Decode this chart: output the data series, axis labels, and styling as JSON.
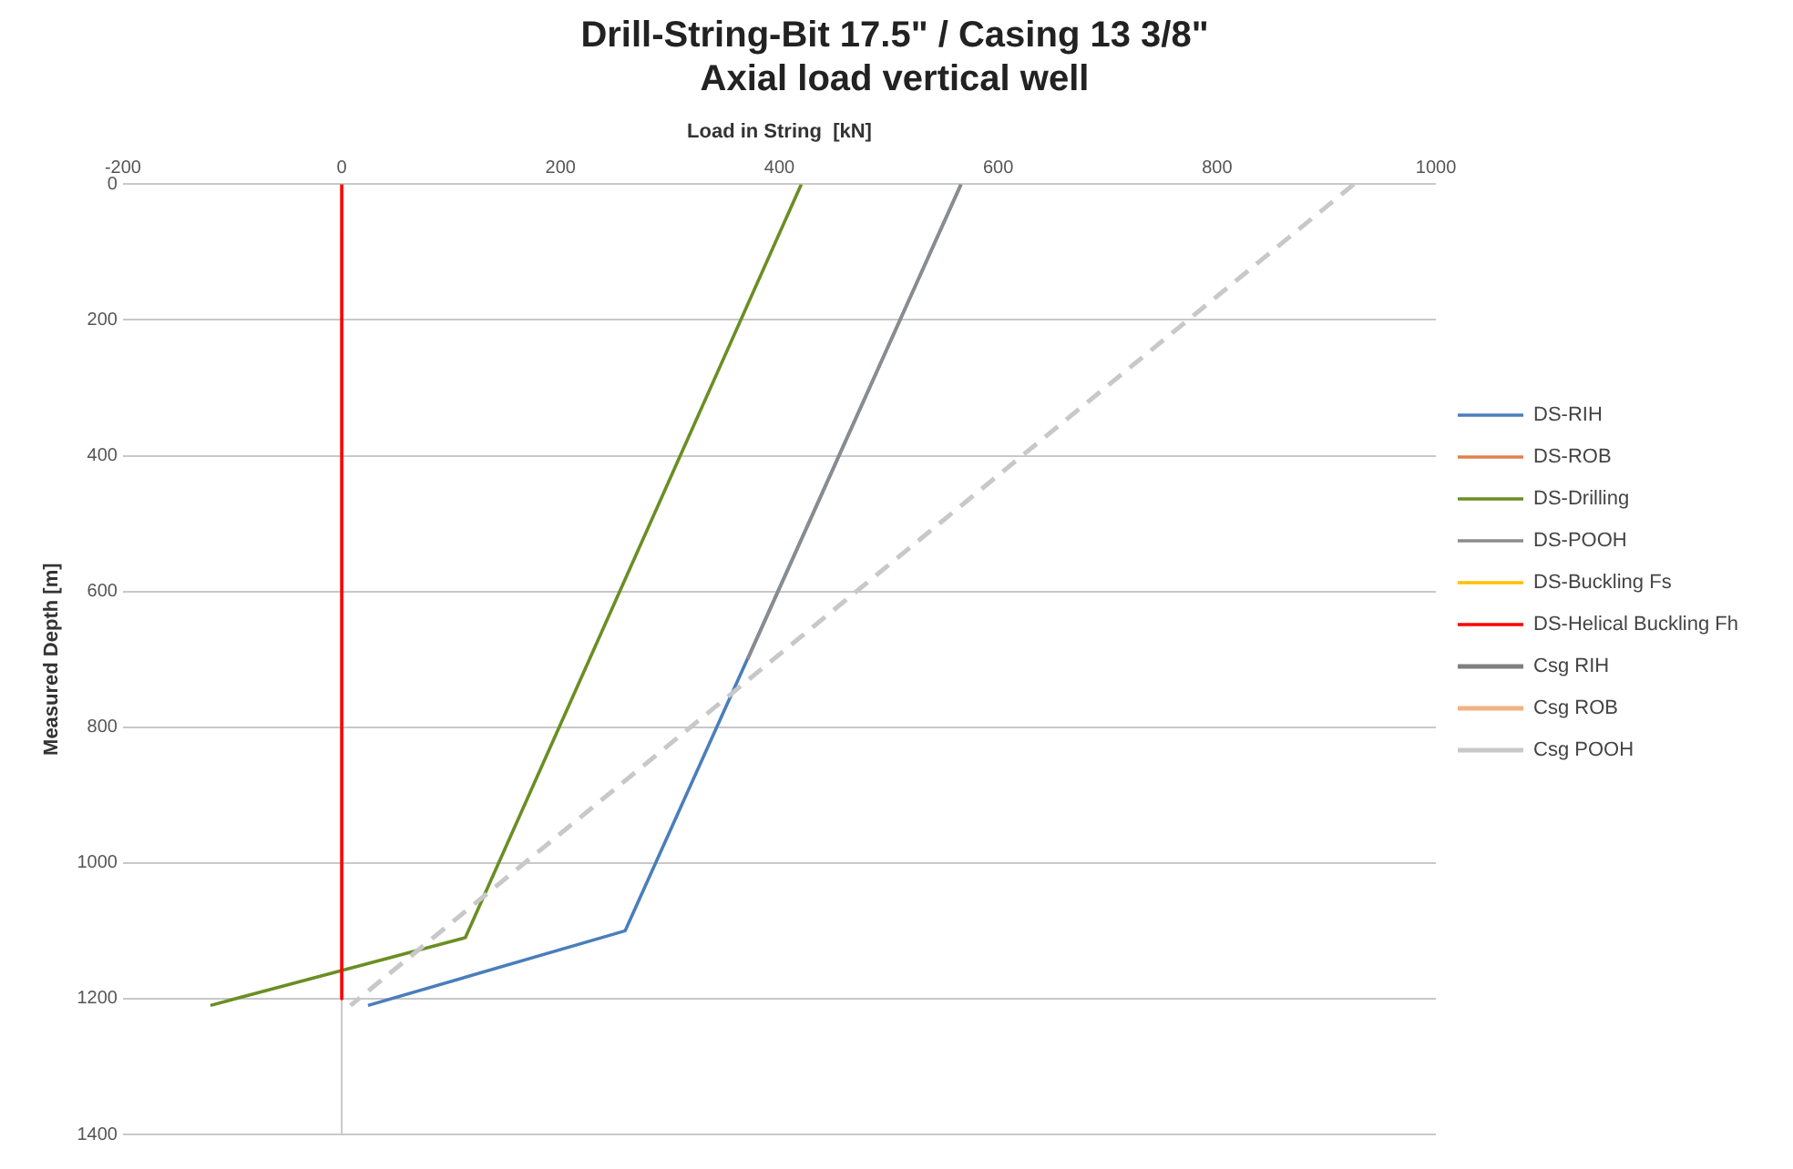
{
  "chart_data": {
    "type": "line",
    "title": "Drill-String-Bit 17.5\" / Casing 13 3/8\"\nAxial load vertical well",
    "xlabel": "Load in String  [kN]",
    "ylabel": "Measured Depth [m]",
    "xlim": [
      -200,
      1000
    ],
    "xticks": [
      -200,
      0,
      200,
      400,
      600,
      800,
      1000
    ],
    "ylim": [
      1400,
      0
    ],
    "yticks": [
      0,
      200,
      400,
      600,
      800,
      1000,
      1200,
      1400
    ],
    "grid": "y",
    "legend": "right",
    "marker": "none",
    "ref_lines": [
      {
        "axis": "x",
        "value": 0,
        "color": "#c8c8c8"
      }
    ],
    "series": [
      {
        "name": "DS-RIH",
        "color": "#4a7ebb",
        "line_style": "solid",
        "x": [
          566,
          259,
          24
        ],
        "values": [
          0,
          1100,
          1210
        ]
      },
      {
        "name": "DS-ROB",
        "color": "#e0804a",
        "line_style": "solid"
      },
      {
        "name": "DS-Drilling",
        "color": "#6b8e23",
        "line_style": "solid",
        "x": [
          420,
          113,
          -120
        ],
        "values": [
          0,
          1110,
          1210
        ]
      },
      {
        "name": "DS-POOH",
        "color": "#8c8c8c",
        "line_style": "solid",
        "x": [
          566,
          371
        ],
        "values": [
          0,
          700
        ]
      },
      {
        "name": "DS-Buckling Fs",
        "color": "#ffc000",
        "line_style": "solid"
      },
      {
        "name": "DS-Helical Buckling Fh",
        "color": "#ff0000",
        "line_style": "solid",
        "x": [
          0,
          0
        ],
        "values": [
          0,
          1200
        ]
      },
      {
        "name": "Csg RIH",
        "color": "#7f7f7f",
        "line_style": "dashed"
      },
      {
        "name": "Csg ROB",
        "color": "#f4b183",
        "line_style": "dashed"
      },
      {
        "name": "Csg POOH",
        "color": "#c8c8c8",
        "line_style": "dashed",
        "x": [
          925,
          8
        ],
        "values": [
          0,
          1210
        ]
      }
    ]
  }
}
